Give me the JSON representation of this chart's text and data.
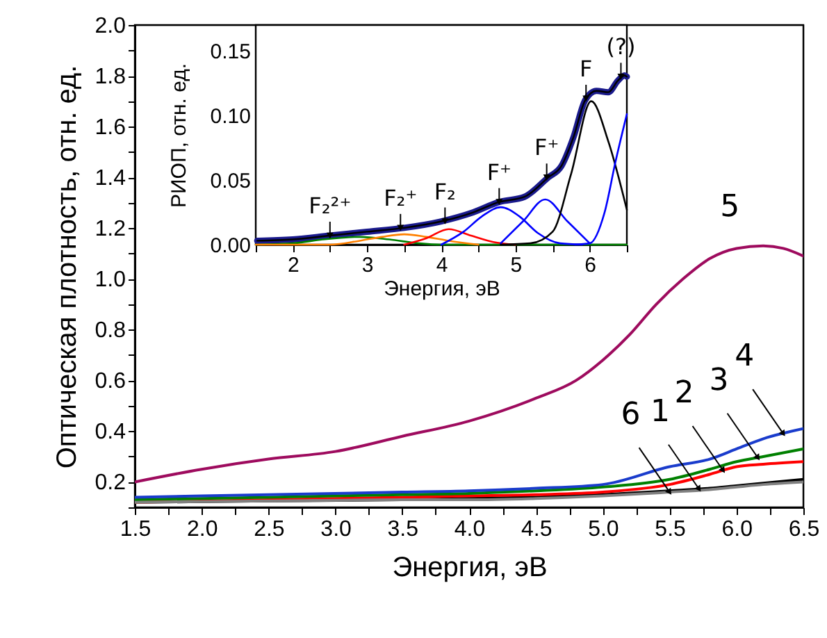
{
  "chart_data": [
    {
      "type": "line",
      "xlabel": "Энергия, эВ",
      "ylabel": "Оптическая плотность, отн. ед.",
      "x": [
        1.5,
        2.5,
        3.5,
        4.0,
        4.5,
        5.0,
        5.5,
        5.8,
        6.0,
        6.2,
        6.5
      ],
      "series": [
        {
          "color": "#9e0b5e",
          "x": [
            1.5,
            2.0,
            2.5,
            3.0,
            3.5,
            4.0,
            4.5,
            4.8,
            5.0,
            5.2,
            5.4,
            5.6,
            5.8,
            6.0,
            6.2,
            6.35,
            6.5
          ],
          "values": [
            0.2,
            0.25,
            0.29,
            0.32,
            0.38,
            0.44,
            0.53,
            0.6,
            0.68,
            0.78,
            0.9,
            1.0,
            1.08,
            1.12,
            1.13,
            1.12,
            1.09
          ]
        },
        {
          "color": "#000000",
          "values": [
            0.12,
            0.125,
            0.13,
            0.135,
            0.14,
            0.15,
            0.165,
            0.175,
            0.185,
            0.195,
            0.21
          ]
        },
        {
          "color": "#ff0000",
          "values": [
            0.12,
            0.13,
            0.14,
            0.145,
            0.15,
            0.16,
            0.19,
            0.23,
            0.26,
            0.27,
            0.28
          ]
        },
        {
          "color": "#008000",
          "values": [
            0.13,
            0.14,
            0.15,
            0.155,
            0.165,
            0.18,
            0.21,
            0.25,
            0.28,
            0.3,
            0.33
          ]
        },
        {
          "color": "#1a3ccc",
          "values": [
            0.14,
            0.15,
            0.16,
            0.165,
            0.175,
            0.19,
            0.26,
            0.29,
            0.33,
            0.37,
            0.41
          ]
        },
        {
          "color": "#808080",
          "values": [
            0.12,
            0.125,
            0.13,
            0.13,
            0.135,
            0.145,
            0.16,
            0.17,
            0.18,
            0.19,
            0.2
          ]
        }
      ],
      "xlim": [
        1.5,
        6.5
      ],
      "ylim": [
        0.1,
        2.0
      ],
      "xticks": [
        1.5,
        {
          "value": 1.75,
          "label": null
        },
        {
          "value": 2,
          "label": "2.0"
        },
        {
          "value": 2.25,
          "label": null
        },
        2.5,
        {
          "value": 2.75,
          "label": null
        },
        {
          "value": 3,
          "label": "3.0"
        },
        {
          "value": 3.25,
          "label": null
        },
        3.5,
        {
          "value": 3.75,
          "label": null
        },
        {
          "value": 4,
          "label": "4.0"
        },
        {
          "value": 4.25,
          "label": null
        },
        4.5,
        {
          "value": 4.75,
          "label": null
        },
        {
          "value": 5,
          "label": "5.0"
        },
        {
          "value": 5.25,
          "label": null
        },
        5.5,
        {
          "value": 5.75,
          "label": null
        },
        {
          "value": 6,
          "label": "6.0"
        },
        {
          "value": 6.25,
          "label": null
        },
        6.5
      ],
      "yticks": [
        {
          "value": 0.1,
          "label": null
        },
        0.2,
        {
          "value": 0.3,
          "label": null
        },
        0.4,
        {
          "value": 0.5,
          "label": null
        },
        0.6,
        {
          "value": 0.7,
          "label": null
        },
        0.8,
        {
          "value": 0.9,
          "label": null
        },
        {
          "value": 1,
          "label": "1.0"
        },
        {
          "value": 1.1,
          "label": null
        },
        1.2,
        {
          "value": 1.3,
          "label": null
        },
        1.4,
        {
          "value": 1.5,
          "label": null
        },
        1.6,
        {
          "value": 1.7,
          "label": null
        },
        1.8,
        {
          "value": 1.9,
          "label": null
        },
        {
          "value": 2,
          "label": "2.0"
        }
      ],
      "annotations": [
        {
          "text": "5",
          "x": 5.95,
          "y": 1.12
        },
        {
          "text": "6",
          "x": 5.5,
          "y": 0.16
        },
        {
          "text": "1",
          "x": 5.72,
          "y": 0.172
        },
        {
          "text": "2",
          "x": 5.9,
          "y": 0.245
        },
        {
          "text": "3",
          "x": 6.16,
          "y": 0.295
        },
        {
          "text": "4",
          "x": 6.35,
          "y": 0.39
        }
      ],
      "grid": false
    },
    {
      "type": "line",
      "xlabel": "Энергия, эВ",
      "ylabel": "РИОП, отн. ед.",
      "series": [
        {
          "color": "#1a1a8c",
          "x": [
            1.52,
            2.0,
            2.5,
            3.0,
            3.5,
            4.0,
            4.43,
            4.78,
            5.12,
            5.44,
            5.62,
            5.78,
            5.94,
            6.09,
            6.25,
            6.38,
            6.47,
            6.5
          ],
          "values": [
            0.003,
            0.004,
            0.007,
            0.01,
            0.013,
            0.018,
            0.025,
            0.033,
            0.037,
            0.052,
            0.061,
            0.083,
            0.112,
            0.119,
            0.118,
            0.127,
            0.131,
            0.13
          ]
        },
        {
          "color": "#000000",
          "x": [
            1.52,
            2.0,
            2.5,
            3.0,
            3.5,
            4.0,
            4.43,
            4.78,
            5.12,
            5.44,
            5.62,
            5.78,
            5.94,
            6.09,
            6.25,
            6.38,
            6.47,
            6.5
          ],
          "values": [
            0.003,
            0.004,
            0.007,
            0.01,
            0.013,
            0.018,
            0.025,
            0.033,
            0.037,
            0.052,
            0.061,
            0.083,
            0.112,
            0.119,
            0.118,
            0.127,
            0.131,
            0.13
          ]
        },
        {
          "color": "#008000",
          "x": [
            1.5,
            2.0,
            2.4,
            2.9,
            3.3,
            3.7,
            4.0,
            6.5
          ],
          "values": [
            0,
            0.001,
            0.004,
            0.006,
            0.004,
            0.001,
            0,
            0
          ]
        },
        {
          "color": "#ff8000",
          "x": [
            1.5,
            2.5,
            2.9,
            3.2,
            3.5,
            3.8,
            4.1,
            4.5
          ],
          "values": [
            0,
            0,
            0.003,
            0.006,
            0.008,
            0.006,
            0.003,
            0
          ]
        },
        {
          "color": "#ff0000",
          "x": [
            3.5,
            3.8,
            4.1,
            4.4,
            4.7,
            5.0
          ],
          "values": [
            0,
            0.005,
            0.012,
            0.007,
            0.002,
            0
          ]
        },
        {
          "color": "#0000ff",
          "x": [
            4.0,
            4.3,
            4.55,
            4.8,
            5.05,
            5.3,
            5.6,
            5.9
          ],
          "values": [
            0,
            0.01,
            0.022,
            0.029,
            0.022,
            0.009,
            0.001,
            0
          ]
        },
        {
          "color": "#0000ff",
          "x": [
            4.8,
            5.1,
            5.4,
            5.7,
            6.0
          ],
          "values": [
            0.001,
            0.018,
            0.035,
            0.018,
            0.001
          ]
        },
        {
          "color": "#000000",
          "x": [
            4.8,
            5.2,
            5.5,
            5.75,
            6.02,
            6.25,
            6.5
          ],
          "values": [
            0,
            0.001,
            0.01,
            0.055,
            0.111,
            0.08,
            0.027
          ]
        },
        {
          "color": "#0000ff",
          "x": [
            5.8,
            6.0,
            6.2,
            6.35,
            6.5
          ],
          "values": [
            0,
            0.001,
            0.025,
            0.065,
            0.101
          ]
        }
      ],
      "xlim": [
        1.5,
        6.5
      ],
      "ylim": [
        0,
        0.17
      ],
      "xticks": [
        {
          "value": 1.5,
          "label": null
        },
        2,
        {
          "value": 2.5,
          "label": null
        },
        3,
        {
          "value": 3.5,
          "label": null
        },
        4,
        {
          "value": 4.5,
          "label": null
        },
        5,
        {
          "value": 5.5,
          "label": null
        },
        6,
        {
          "value": 6.5,
          "label": null
        }
      ],
      "yticks": [
        {
          "value": 0,
          "label": "0.00"
        },
        {
          "value": 0.025,
          "label": null
        },
        0.05,
        {
          "value": 0.075,
          "label": null
        },
        {
          "value": 0.1,
          "label": "0.10"
        },
        {
          "value": 0.125,
          "label": null
        },
        0.15
      ],
      "annotations": [
        {
          "text": "F₂²⁺",
          "x": 2.5,
          "y": 0.007
        },
        {
          "text": "F₂⁺",
          "x": 3.45,
          "y": 0.013
        },
        {
          "text": "F₂",
          "x": 4.05,
          "y": 0.018
        },
        {
          "text": "F⁺",
          "x": 4.78,
          "y": 0.033
        },
        {
          "text": "F⁺",
          "x": 5.42,
          "y": 0.052
        },
        {
          "text": "F",
          "x": 5.95,
          "y": 0.113
        },
        {
          "text": "(?)",
          "x": 6.42,
          "y": 0.13
        }
      ],
      "grid": false
    }
  ]
}
